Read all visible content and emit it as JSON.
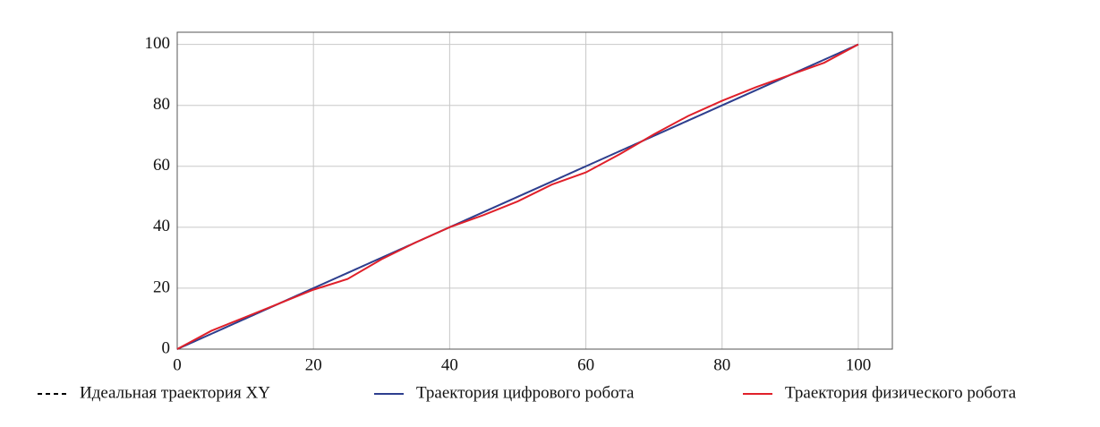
{
  "chart_data": {
    "type": "line",
    "x": [
      0,
      5,
      10,
      15,
      20,
      25,
      30,
      35,
      40,
      45,
      50,
      55,
      60,
      65,
      70,
      75,
      80,
      85,
      90,
      95,
      100
    ],
    "series": [
      {
        "name": "Идеальная траектория XY",
        "color": "#000000",
        "dash": true,
        "values": [
          0,
          5,
          10,
          15,
          20,
          25,
          30,
          35,
          40,
          45,
          50,
          55,
          60,
          65,
          70,
          75,
          80,
          85,
          90,
          95,
          100
        ]
      },
      {
        "name": "Траектория цифрового робота",
        "color": "#2e3f8f",
        "dash": false,
        "values": [
          0,
          5,
          10,
          15,
          20,
          25,
          30,
          35,
          40,
          45,
          50,
          55,
          60,
          65,
          70,
          75,
          80,
          85,
          90,
          95,
          100
        ]
      },
      {
        "name": "Траектория физического робота",
        "color": "#e0202a",
        "dash": false,
        "values": [
          0,
          6,
          10.5,
          15,
          19.5,
          23,
          29.5,
          35,
          40,
          44,
          48.5,
          54,
          58,
          64,
          70.5,
          76.5,
          81.5,
          86,
          90,
          94,
          100
        ]
      }
    ],
    "xlim": [
      0,
      105
    ],
    "ylim": [
      0,
      104
    ],
    "xticks": [
      0,
      20,
      40,
      60,
      80,
      100
    ],
    "yticks": [
      0,
      20,
      40,
      60,
      80,
      100
    ],
    "grid": true
  }
}
